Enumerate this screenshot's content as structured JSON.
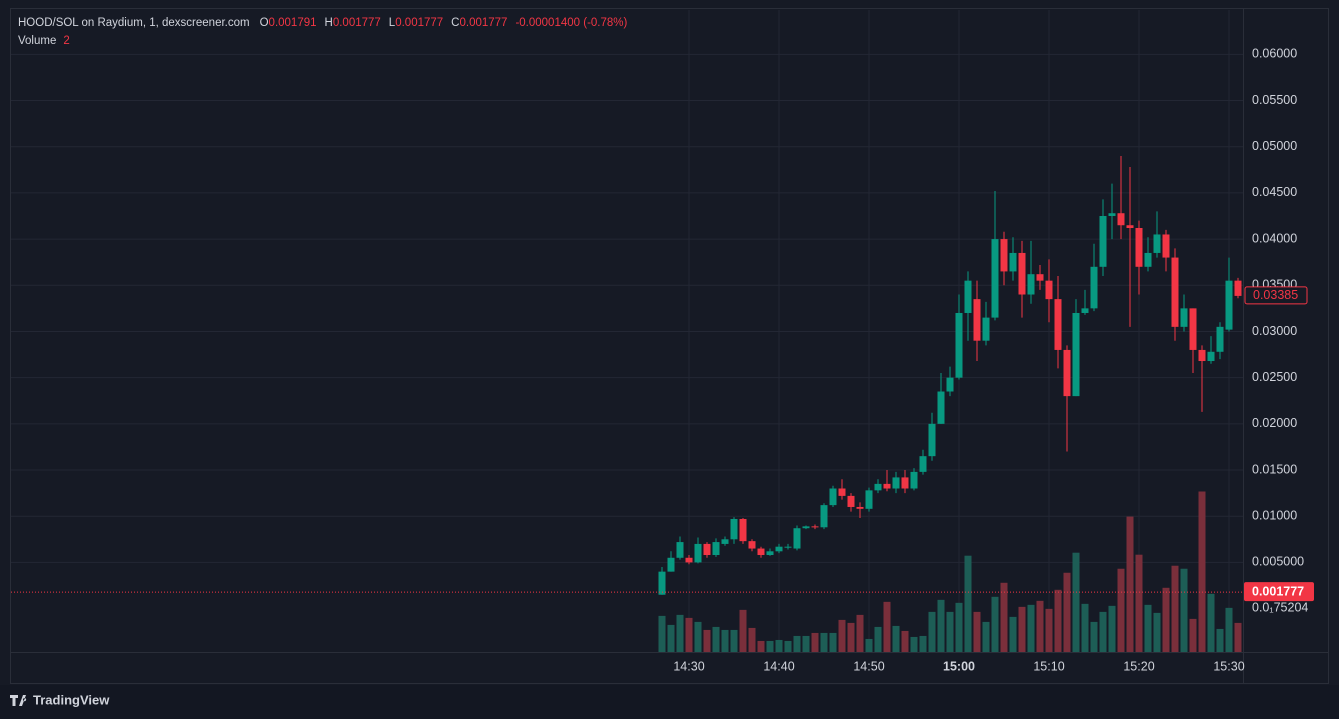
{
  "chart_data": {
    "type": "candlestick",
    "legend": {
      "symbol": "HOOD/SOL on Raydium, 1, dexscreener.com",
      "o_label": "O",
      "o": "0.001791",
      "h_label": "H",
      "h": "0.001777",
      "l_label": "L",
      "l": "0.001777",
      "c_label": "C",
      "c": "0.001777",
      "change": "-0.00001400 (-0.78%)",
      "volume_label": "Volume",
      "volume": "2"
    },
    "categories": [
      "14:27",
      "14:28",
      "14:29",
      "14:30",
      "14:31",
      "14:32",
      "14:33",
      "14:34",
      "14:35",
      "14:36",
      "14:37",
      "14:38",
      "14:39",
      "14:40",
      "14:41",
      "14:42",
      "14:43",
      "14:44",
      "14:45",
      "14:46",
      "14:47",
      "14:48",
      "14:49",
      "14:50",
      "14:51",
      "14:52",
      "14:53",
      "14:54",
      "14:55",
      "14:56",
      "14:57",
      "14:58",
      "14:59",
      "15:00",
      "15:01",
      "15:02",
      "15:03",
      "15:04",
      "15:05",
      "15:06",
      "15:07",
      "15:08",
      "15:09",
      "15:10",
      "15:11",
      "15:12",
      "15:13",
      "15:14",
      "15:15",
      "15:16",
      "15:17",
      "15:18",
      "15:19",
      "15:20",
      "15:21",
      "15:22",
      "15:23",
      "15:24",
      "15:25",
      "15:26",
      "15:27",
      "15:28",
      "15:29",
      "15:30",
      "15:31"
    ],
    "open": [
      0.0015,
      0.004,
      0.0055,
      0.0055,
      0.005,
      0.007,
      0.0058,
      0.007,
      0.0075,
      0.0097,
      0.0073,
      0.0065,
      0.0058,
      0.0062,
      0.0066,
      0.0065,
      0.0087,
      0.0089,
      0.0088,
      0.0112,
      0.013,
      0.0122,
      0.011,
      0.0108,
      0.0128,
      0.0135,
      0.013,
      0.0142,
      0.013,
      0.0148,
      0.0165,
      0.02,
      0.0235,
      0.025,
      0.032,
      0.0335,
      0.029,
      0.0315,
      0.04,
      0.0365,
      0.0385,
      0.034,
      0.0362,
      0.0355,
      0.0335,
      0.028,
      0.023,
      0.032,
      0.0325,
      0.037,
      0.0425,
      0.0428,
      0.0415,
      0.0412,
      0.037,
      0.0385,
      0.0405,
      0.038,
      0.0305,
      0.0325,
      0.028,
      0.0268,
      0.0278,
      0.0302,
      0.0355
    ],
    "high": [
      0.0045,
      0.0062,
      0.0078,
      0.0058,
      0.0077,
      0.0072,
      0.0076,
      0.0078,
      0.0099,
      0.0098,
      0.0075,
      0.0067,
      0.0065,
      0.007,
      0.007,
      0.009,
      0.009,
      0.0091,
      0.0114,
      0.0133,
      0.014,
      0.0125,
      0.0115,
      0.0131,
      0.014,
      0.015,
      0.0148,
      0.015,
      0.0152,
      0.0172,
      0.0212,
      0.0255,
      0.0262,
      0.034,
      0.0365,
      0.0355,
      0.0332,
      0.0452,
      0.0408,
      0.0402,
      0.0398,
      0.0398,
      0.0372,
      0.0378,
      0.036,
      0.0285,
      0.0335,
      0.0345,
      0.0395,
      0.0443,
      0.046,
      0.049,
      0.0478,
      0.042,
      0.0402,
      0.043,
      0.041,
      0.039,
      0.034,
      0.0325,
      0.0285,
      0.0295,
      0.031,
      0.038,
      0.0358
    ],
    "low": [
      0.0015,
      0.004,
      0.0053,
      0.0048,
      0.0049,
      0.0055,
      0.0056,
      0.0068,
      0.007,
      0.007,
      0.0062,
      0.0055,
      0.0057,
      0.006,
      0.0064,
      0.0063,
      0.0086,
      0.0086,
      0.0086,
      0.011,
      0.0118,
      0.0105,
      0.0098,
      0.0105,
      0.0125,
      0.0127,
      0.0125,
      0.0125,
      0.0128,
      0.0145,
      0.016,
      0.02,
      0.023,
      0.0248,
      0.029,
      0.0268,
      0.0285,
      0.0312,
      0.035,
      0.0355,
      0.0315,
      0.033,
      0.0345,
      0.031,
      0.026,
      0.017,
      0.023,
      0.0318,
      0.0322,
      0.036,
      0.04,
      0.04,
      0.0305,
      0.034,
      0.0365,
      0.038,
      0.0365,
      0.029,
      0.03,
      0.0255,
      0.0213,
      0.0265,
      0.027,
      0.03,
      0.0336
    ],
    "close": [
      0.004,
      0.0055,
      0.0072,
      0.005,
      0.007,
      0.0058,
      0.0072,
      0.0075,
      0.0097,
      0.0073,
      0.0065,
      0.0058,
      0.0062,
      0.0067,
      0.0067,
      0.0087,
      0.0089,
      0.0088,
      0.0112,
      0.013,
      0.0122,
      0.011,
      0.0108,
      0.0128,
      0.0135,
      0.013,
      0.0142,
      0.013,
      0.0148,
      0.0165,
      0.02,
      0.0235,
      0.025,
      0.032,
      0.0355,
      0.029,
      0.0315,
      0.04,
      0.0365,
      0.0385,
      0.034,
      0.0362,
      0.0355,
      0.0335,
      0.028,
      0.023,
      0.032,
      0.0325,
      0.037,
      0.0425,
      0.0428,
      0.0415,
      0.0412,
      0.037,
      0.0385,
      0.0405,
      0.038,
      0.0305,
      0.0325,
      0.028,
      0.0268,
      0.0278,
      0.0305,
      0.0355,
      0.03385
    ],
    "volume": [
      36,
      27,
      37,
      34,
      30,
      22,
      25,
      22,
      22,
      42,
      24,
      11,
      11,
      12,
      11,
      16,
      16,
      19,
      19,
      19,
      32,
      29,
      37,
      13,
      25,
      50,
      26,
      21,
      15,
      16,
      40,
      52,
      40,
      49,
      96,
      40,
      30,
      55,
      69,
      35,
      45,
      47,
      51,
      43,
      62,
      79,
      99,
      48,
      30,
      40,
      46,
      83,
      135,
      97,
      47,
      39,
      64,
      86,
      83,
      33,
      160,
      58,
      23,
      44,
      29
    ],
    "up_color": "#089981",
    "down_color": "#f23645",
    "volume_up_color": "#1d5e56",
    "volume_down_color": "#7a2f3b",
    "ylim": [
      -0.0047,
      0.0648
    ],
    "yticks": [
      {
        "value": 0.005,
        "label": "0.005000"
      },
      {
        "value": 0.01,
        "label": "0.01000"
      },
      {
        "value": 0.015,
        "label": "0.01500"
      },
      {
        "value": 0.02,
        "label": "0.02000"
      },
      {
        "value": 0.025,
        "label": "0.02500"
      },
      {
        "value": 0.03,
        "label": "0.03000"
      },
      {
        "value": 0.035,
        "label": "0.03500"
      },
      {
        "value": 0.04,
        "label": "0.04000"
      },
      {
        "value": 0.045,
        "label": "0.04500"
      },
      {
        "value": 0.05,
        "label": "0.05000"
      },
      {
        "value": 0.055,
        "label": "0.05500"
      },
      {
        "value": 0.06,
        "label": "0.06000"
      }
    ],
    "y2lim": [
      0,
      640
    ],
    "xticks": [
      "14:30",
      "14:40",
      "14:50",
      "15:00",
      "15:10",
      "15:20",
      "15:30"
    ],
    "price_line": 0.001777,
    "volume_scale_label": "0.0₁75204",
    "grid": true,
    "brand": "TradingView"
  }
}
